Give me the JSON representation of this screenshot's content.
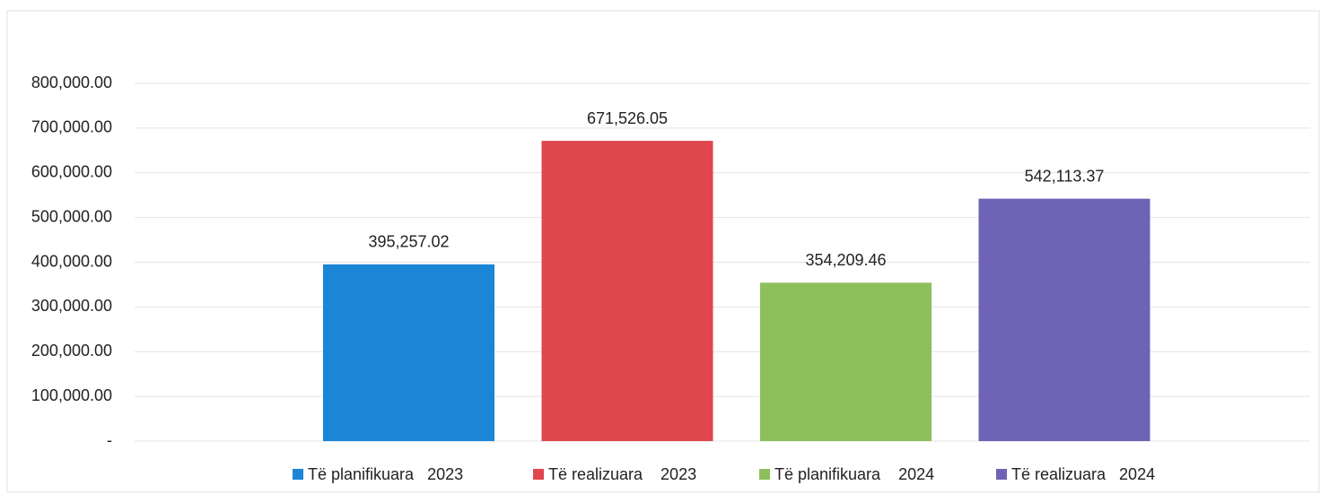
{
  "chart_data": {
    "type": "bar",
    "categories": [
      null
    ],
    "series": [
      {
        "name": "Të planifikuara   2023",
        "color": "#1b85d6",
        "values": [
          395257.02
        ],
        "value_labels": [
          "395,257.02"
        ]
      },
      {
        "name": "Të realizuara    2023",
        "color": "#e0464d",
        "values": [
          671526.05
        ],
        "value_labels": [
          "671,526.05"
        ]
      },
      {
        "name": "Të planifikuara    2024",
        "color": "#8dbf5b",
        "values": [
          354209.46
        ],
        "value_labels": [
          "354,209.46"
        ]
      },
      {
        "name": "Të realizuara   2024",
        "color": "#6e63b4",
        "values": [
          542113.37
        ],
        "value_labels": [
          "542,113.37"
        ]
      }
    ],
    "ylim": [
      0,
      800000
    ],
    "yticks": [
      {
        "value": 0,
        "label": "-"
      },
      {
        "value": 100000,
        "label": "100,000.00"
      },
      {
        "value": 200000,
        "label": "200,000.00"
      },
      {
        "value": 300000,
        "label": "300,000.00"
      },
      {
        "value": 400000,
        "label": "400,000.00"
      },
      {
        "value": 500000,
        "label": "500,000.00"
      },
      {
        "value": 600000,
        "label": "600,000.00"
      },
      {
        "value": 700000,
        "label": "700,000.00"
      },
      {
        "value": 800000,
        "label": "800,000.00"
      }
    ],
    "grid": true,
    "legend": "bottom"
  }
}
